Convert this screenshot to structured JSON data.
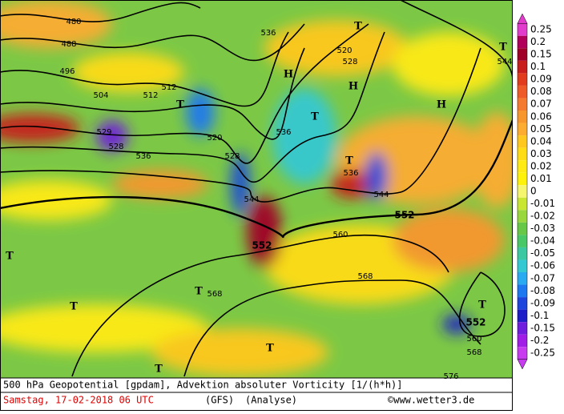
{
  "map": {
    "contour_labels": [
      "480",
      "488",
      "496",
      "504",
      "512",
      "512",
      "520",
      "528",
      "529",
      "528",
      "536",
      "536",
      "536",
      "536",
      "544",
      "544",
      "552",
      "552",
      "552",
      "560",
      "560",
      "568",
      "568",
      "568",
      "576",
      "520",
      "528",
      "544"
    ],
    "pressure_labels": [
      "H",
      "H",
      "H",
      "T",
      "T",
      "T",
      "T",
      "T",
      "T",
      "T",
      "T",
      "T",
      "T",
      "T"
    ],
    "legend": {
      "labels": [
        "0.25",
        "0.2",
        "0.15",
        "0.1",
        "0.09",
        "0.08",
        "0.07",
        "0.06",
        "0.05",
        "0.04",
        "0.03",
        "0.02",
        "0.01",
        "0",
        "-0.01",
        "-0.02",
        "-0.03",
        "-0.04",
        "-0.05",
        "-0.06",
        "-0.07",
        "-0.08",
        "-0.09",
        "-0.1",
        "-0.15",
        "-0.2",
        "-0.25"
      ],
      "colors": [
        "#e23ccc",
        "#b0005a",
        "#a00028",
        "#c81e1e",
        "#e23c1e",
        "#ee5a28",
        "#f47a30",
        "#f8962e",
        "#fcac30",
        "#ffc81e",
        "#ffdc14",
        "#ffea14",
        "#fff20a",
        "#f6f66e",
        "#c8e632",
        "#98d83c",
        "#66c846",
        "#48c866",
        "#3cc8a0",
        "#34c8d2",
        "#2aaaf0",
        "#1e78f0",
        "#1e46dc",
        "#1e1ec8",
        "#6e1edc",
        "#a01ee6",
        "#c83cf0"
      ]
    }
  },
  "footer": {
    "title": "500 hPa Geopotential [gpdam], Advektion absoluter Vorticity [1/(h*h)]",
    "date": "Samstag, 17-02-2018  06 UTC",
    "model": "(GFS)",
    "run": "(Analyse)",
    "credit": "©www.wetter3.de"
  }
}
